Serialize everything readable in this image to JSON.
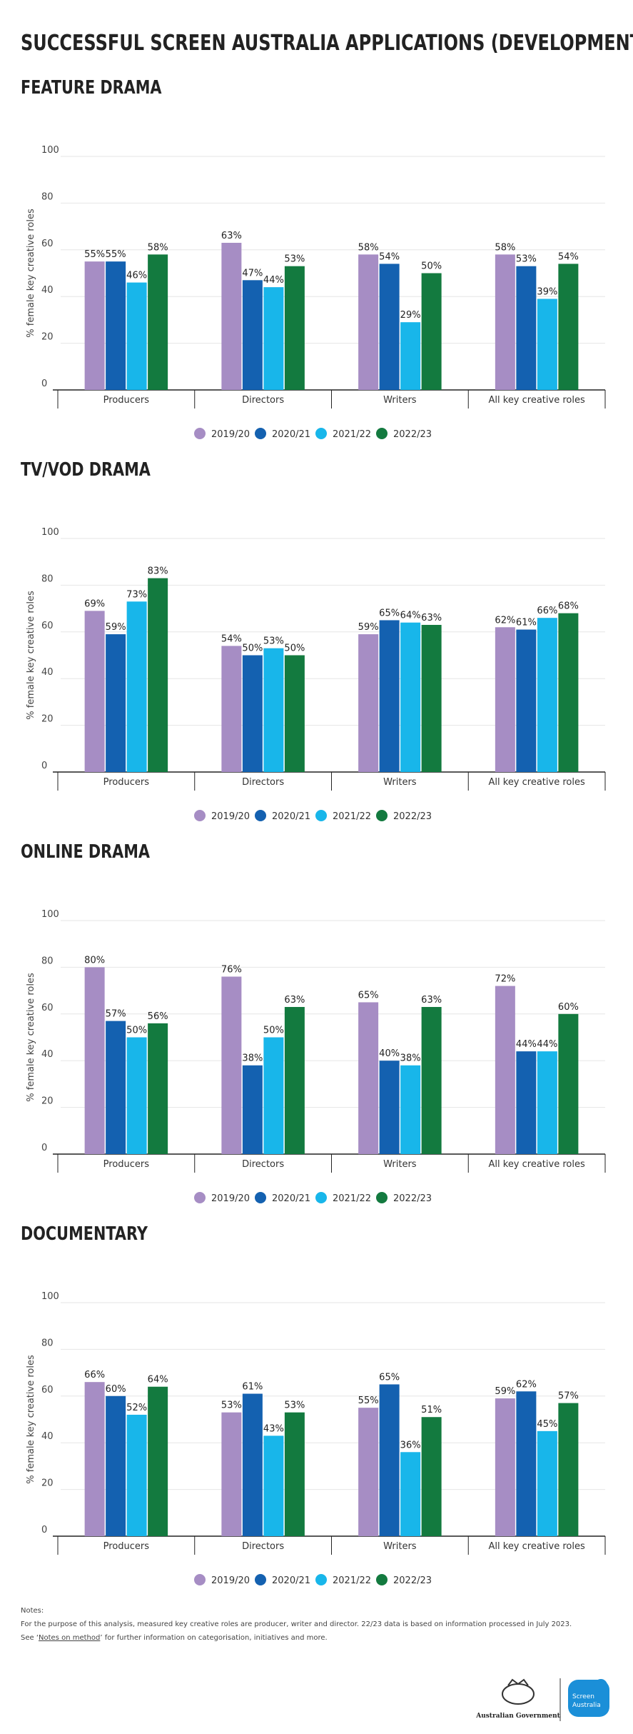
{
  "page_title": "SUCCESSFUL SCREEN AUSTRALIA APPLICATIONS (DEVELOPMENT ONLY)",
  "chart_data": [
    {
      "type": "bar",
      "title": "FEATURE DRAMA",
      "y_label": "% female key creative roles",
      "categories": [
        "Producers",
        "Directors",
        "Writers",
        "All key creative roles"
      ],
      "ylim": [
        0,
        100
      ],
      "yticks": [
        0,
        20,
        40,
        60,
        80,
        100
      ],
      "grid": true,
      "legend": "bottom",
      "series": [
        {
          "name": "2019/20",
          "color": "#a68dc4",
          "values": [
            55,
            63,
            58,
            58
          ],
          "value_labels": [
            "55%",
            "63%",
            "58%",
            "58%"
          ]
        },
        {
          "name": "2020/21",
          "color": "#1461b0",
          "values": [
            55,
            47,
            54,
            53
          ],
          "value_labels": [
            "55%",
            "47%",
            "54%",
            "53%"
          ]
        },
        {
          "name": "2021/22",
          "color": "#18b6ea",
          "values": [
            46,
            44,
            29,
            39
          ],
          "value_labels": [
            "46%",
            "44%",
            "29%",
            "39%"
          ]
        },
        {
          "name": "2022/23",
          "color": "#137a3f",
          "values": [
            58,
            53,
            50,
            54
          ],
          "value_labels": [
            "58%",
            "53%",
            "50%",
            "54%"
          ]
        }
      ]
    },
    {
      "type": "bar",
      "title": "TV/VOD DRAMA",
      "y_label": "% female key creative roles",
      "categories": [
        "Producers",
        "Directors",
        "Writers",
        "All key creative roles"
      ],
      "ylim": [
        0,
        100
      ],
      "yticks": [
        0,
        20,
        40,
        60,
        80,
        100
      ],
      "grid": true,
      "legend": "bottom",
      "series": [
        {
          "name": "2019/20",
          "color": "#a68dc4",
          "values": [
            69,
            54,
            59,
            62
          ],
          "value_labels": [
            "69%",
            "54%",
            "59%",
            "62%"
          ]
        },
        {
          "name": "2020/21",
          "color": "#1461b0",
          "values": [
            59,
            50,
            65,
            61
          ],
          "value_labels": [
            "59%",
            "50%",
            "65%",
            "61%"
          ]
        },
        {
          "name": "2021/22",
          "color": "#18b6ea",
          "values": [
            73,
            53,
            64,
            66
          ],
          "value_labels": [
            "73%",
            "53%",
            "64%",
            "66%"
          ]
        },
        {
          "name": "2022/23",
          "color": "#137a3f",
          "values": [
            83,
            50,
            63,
            68
          ],
          "value_labels": [
            "83%",
            "50%",
            "63%",
            "68%"
          ]
        }
      ]
    },
    {
      "type": "bar",
      "title": "ONLINE DRAMA",
      "y_label": "% female key creative roles",
      "categories": [
        "Producers",
        "Directors",
        "Writers",
        "All key creative roles"
      ],
      "ylim": [
        0,
        100
      ],
      "yticks": [
        0,
        20,
        40,
        60,
        80,
        100
      ],
      "grid": true,
      "legend": "bottom",
      "series": [
        {
          "name": "2019/20",
          "color": "#a68dc4",
          "values": [
            80,
            76,
            65,
            72
          ],
          "value_labels": [
            "80%",
            "76%",
            "65%",
            "72%"
          ]
        },
        {
          "name": "2020/21",
          "color": "#1461b0",
          "values": [
            57,
            38,
            40,
            44
          ],
          "value_labels": [
            "57%",
            "38%",
            "40%",
            "44%"
          ]
        },
        {
          "name": "2021/22",
          "color": "#18b6ea",
          "values": [
            50,
            50,
            38,
            44
          ],
          "value_labels": [
            "50%",
            "50%",
            "38%",
            "44%"
          ]
        },
        {
          "name": "2022/23",
          "color": "#137a3f",
          "values": [
            56,
            63,
            63,
            60
          ],
          "value_labels": [
            "56%",
            "63%",
            "63%",
            "60%"
          ]
        }
      ]
    },
    {
      "type": "bar",
      "title": "DOCUMENTARY",
      "y_label": "% female key creative roles",
      "categories": [
        "Producers",
        "Directors",
        "Writers",
        "All key creative roles"
      ],
      "ylim": [
        0,
        100
      ],
      "yticks": [
        0,
        20,
        40,
        60,
        80,
        100
      ],
      "grid": true,
      "legend": "bottom",
      "series": [
        {
          "name": "2019/20",
          "color": "#a68dc4",
          "values": [
            66,
            53,
            55,
            59
          ],
          "value_labels": [
            "66%",
            "53%",
            "55%",
            "59%"
          ]
        },
        {
          "name": "2020/21",
          "color": "#1461b0",
          "values": [
            60,
            61,
            65,
            62
          ],
          "value_labels": [
            "60%",
            "61%",
            "65%",
            "62%"
          ]
        },
        {
          "name": "2021/22",
          "color": "#18b6ea",
          "values": [
            52,
            43,
            36,
            45
          ],
          "value_labels": [
            "52%",
            "43%",
            "36%",
            "45%"
          ]
        },
        {
          "name": "2022/23",
          "color": "#137a3f",
          "values": [
            64,
            53,
            51,
            57
          ],
          "value_labels": [
            "64%",
            "53%",
            "51%",
            "57%"
          ]
        }
      ]
    }
  ],
  "notes": {
    "heading": "Notes:",
    "line1": "For the purpose of this analysis, measured key creative roles are producer, writer and director. 22/23 data is based on information processed in July 2023.",
    "line2_prefix": "See ‘",
    "line2_link": "Notes on method",
    "line2_suffix": "’ for further information on categorisation, initiatives and more."
  },
  "footer": {
    "government": "Australian Government",
    "brand_line1": "Screen",
    "brand_line2": "Australia"
  }
}
